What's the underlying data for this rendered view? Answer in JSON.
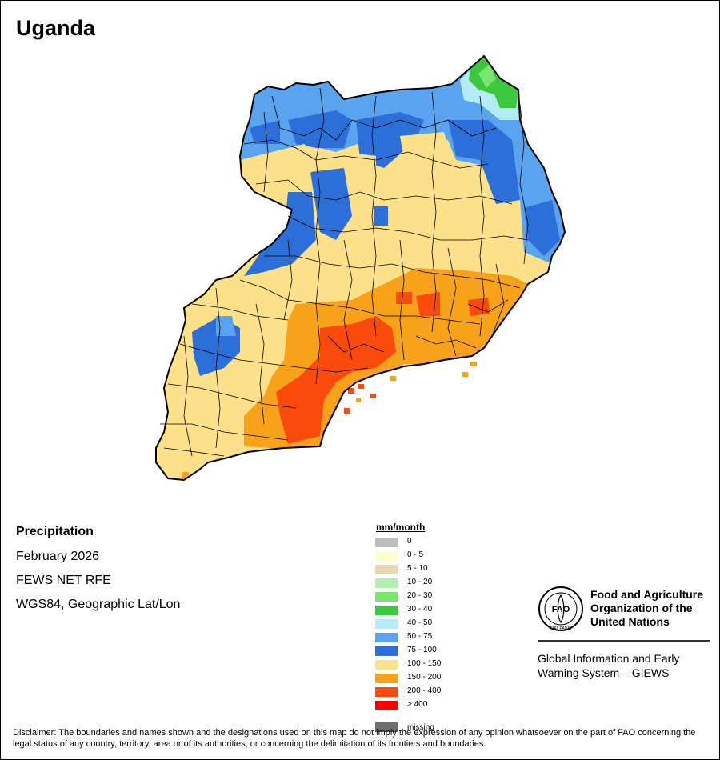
{
  "title": "Uganda",
  "info": {
    "heading": "Precipitation",
    "period": "February 2026",
    "source": "FEWS NET RFE",
    "projection": "WGS84, Geographic Lat/Lon"
  },
  "legend": {
    "unit": "mm/month",
    "classes": [
      {
        "label": "0",
        "color": "#bdbdbd"
      },
      {
        "label": "0 - 5",
        "color": "#ffffcc"
      },
      {
        "label": "5 - 10",
        "color": "#e8d6b0"
      },
      {
        "label": "10 - 20",
        "color": "#b5eeb0"
      },
      {
        "label": "20 - 30",
        "color": "#7ae56f"
      },
      {
        "label": "30 - 40",
        "color": "#3cc83c"
      },
      {
        "label": "40 - 50",
        "color": "#b3ecf5"
      },
      {
        "label": "50 - 75",
        "color": "#5aa3ee"
      },
      {
        "label": "75 - 100",
        "color": "#2d6fd9"
      },
      {
        "label": "100 - 150",
        "color": "#fde08a"
      },
      {
        "label": "150 - 200",
        "color": "#f8a21a"
      },
      {
        "label": "200 - 400",
        "color": "#fa4a0c"
      },
      {
        "label": "> 400",
        "color": "#fd0000"
      }
    ],
    "missing": {
      "label": "missing",
      "color": "#6e6e6e"
    }
  },
  "organization": {
    "logo_text": "FAO",
    "logo_motto": "FIAT PANIS",
    "name_line1": "Food and Agriculture",
    "name_line2": "Organization of the",
    "name_line3": "United Nations",
    "system_line1": "Global Information and Early",
    "system_line2": "Warning System – GIEWS"
  },
  "disclaimer": "Disclaimer: The boundaries and names shown and the designations used on this map do not imply the expression of any opinion whatsoever on the part of FAO concerning the legal status of any country, territory, area or of its authorities, or concerning the delimitation of its frontiers and boundaries."
}
